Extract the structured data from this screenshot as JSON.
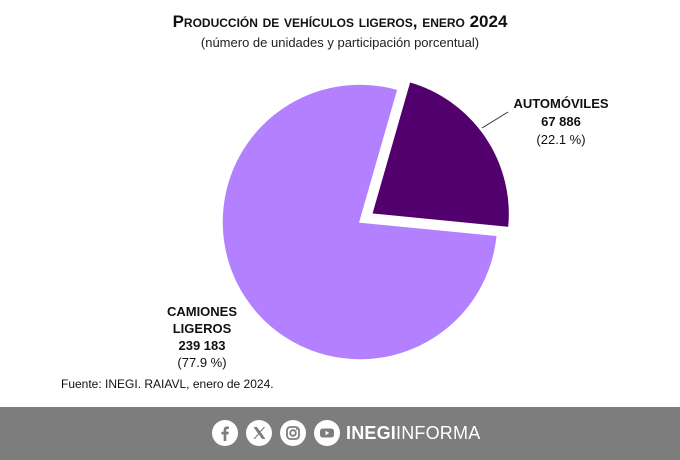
{
  "chart_data": {
    "type": "pie",
    "title": "Producción de vehículos ligeros, enero 2024",
    "subtitle": "(número de unidades y participación porcentual)",
    "slices": [
      {
        "name": "AUTOMÓVILES",
        "value": 67886,
        "value_label": "67 886",
        "pct_label": "(22.1 %)",
        "color": "#52006e",
        "exploded": true
      },
      {
        "name_lines": [
          "CAMIONES",
          "LIGEROS"
        ],
        "value": 239183,
        "value_label": "239  183",
        "pct_label": "(77.9 %)",
        "color": "#b380ff",
        "exploded": false
      }
    ]
  },
  "source": {
    "label": "Fuente:",
    "text": "INEGI. RAIAVL, enero de 2024."
  },
  "footer": {
    "icons": [
      "facebook-icon",
      "x-icon",
      "instagram-icon",
      "youtube-icon"
    ],
    "brand_bold": "INEGI",
    "brand_rest": "INFORMA",
    "background": "#7d7d7d"
  }
}
